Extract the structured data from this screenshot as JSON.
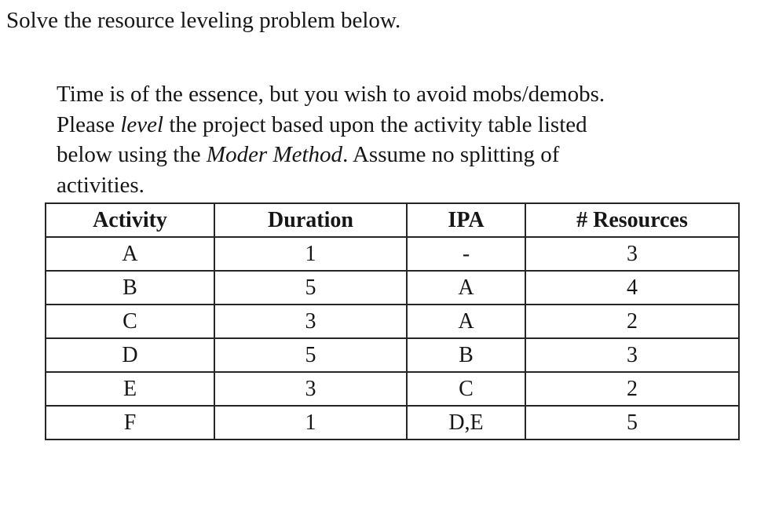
{
  "title": "Solve the resource leveling problem below.",
  "statement": {
    "lines": [
      {
        "segments": [
          {
            "style": "normal",
            "text": "Time is of the essence, but you wish to avoid mobs/demobs."
          }
        ]
      },
      {
        "segments": [
          {
            "style": "normal",
            "text": "Please "
          },
          {
            "style": "italic",
            "text": "level"
          },
          {
            "style": "normal",
            "text": " the project based upon the activity table listed"
          }
        ]
      },
      {
        "segments": [
          {
            "style": "normal",
            "text": "below using the "
          },
          {
            "style": "italic",
            "text": "Moder Method"
          },
          {
            "style": "normal",
            "text": ". Assume no splitting of"
          }
        ]
      },
      {
        "segments": [
          {
            "style": "normal",
            "text": "activities."
          }
        ]
      }
    ]
  },
  "table": {
    "headers": [
      "Activity",
      "Duration",
      "IPA",
      "# Resources"
    ],
    "rows": [
      [
        "A",
        "1",
        "-",
        "3"
      ],
      [
        "B",
        "5",
        "A",
        "4"
      ],
      [
        "C",
        "3",
        "A",
        "2"
      ],
      [
        "D",
        "5",
        "B",
        "3"
      ],
      [
        "E",
        "3",
        "C",
        "2"
      ],
      [
        "F",
        "1",
        "D,E",
        "5"
      ]
    ]
  },
  "colors": {
    "text": "#161616",
    "table_border": "#262626",
    "background": "#ffffff"
  }
}
